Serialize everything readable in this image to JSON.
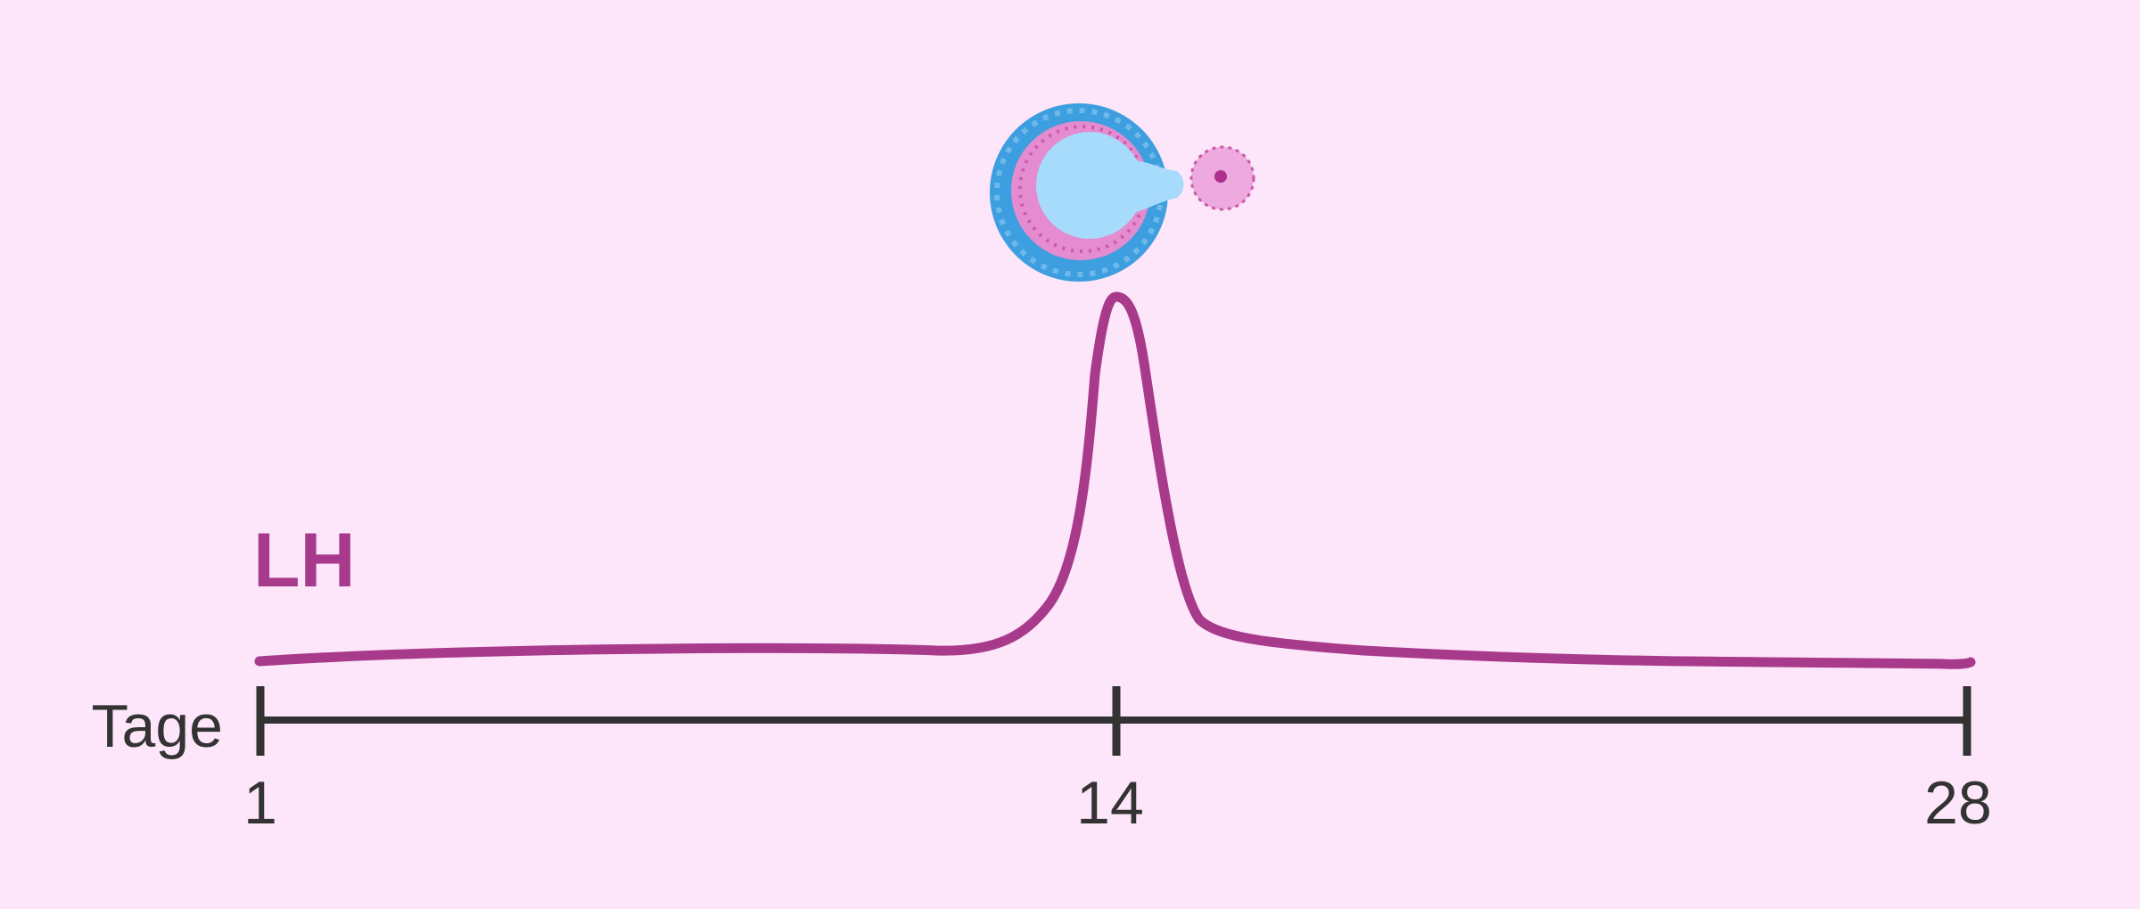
{
  "curve_label": "LH",
  "axis": {
    "title": "Tage",
    "ticks": [
      "1",
      "14",
      "28"
    ]
  }
}
